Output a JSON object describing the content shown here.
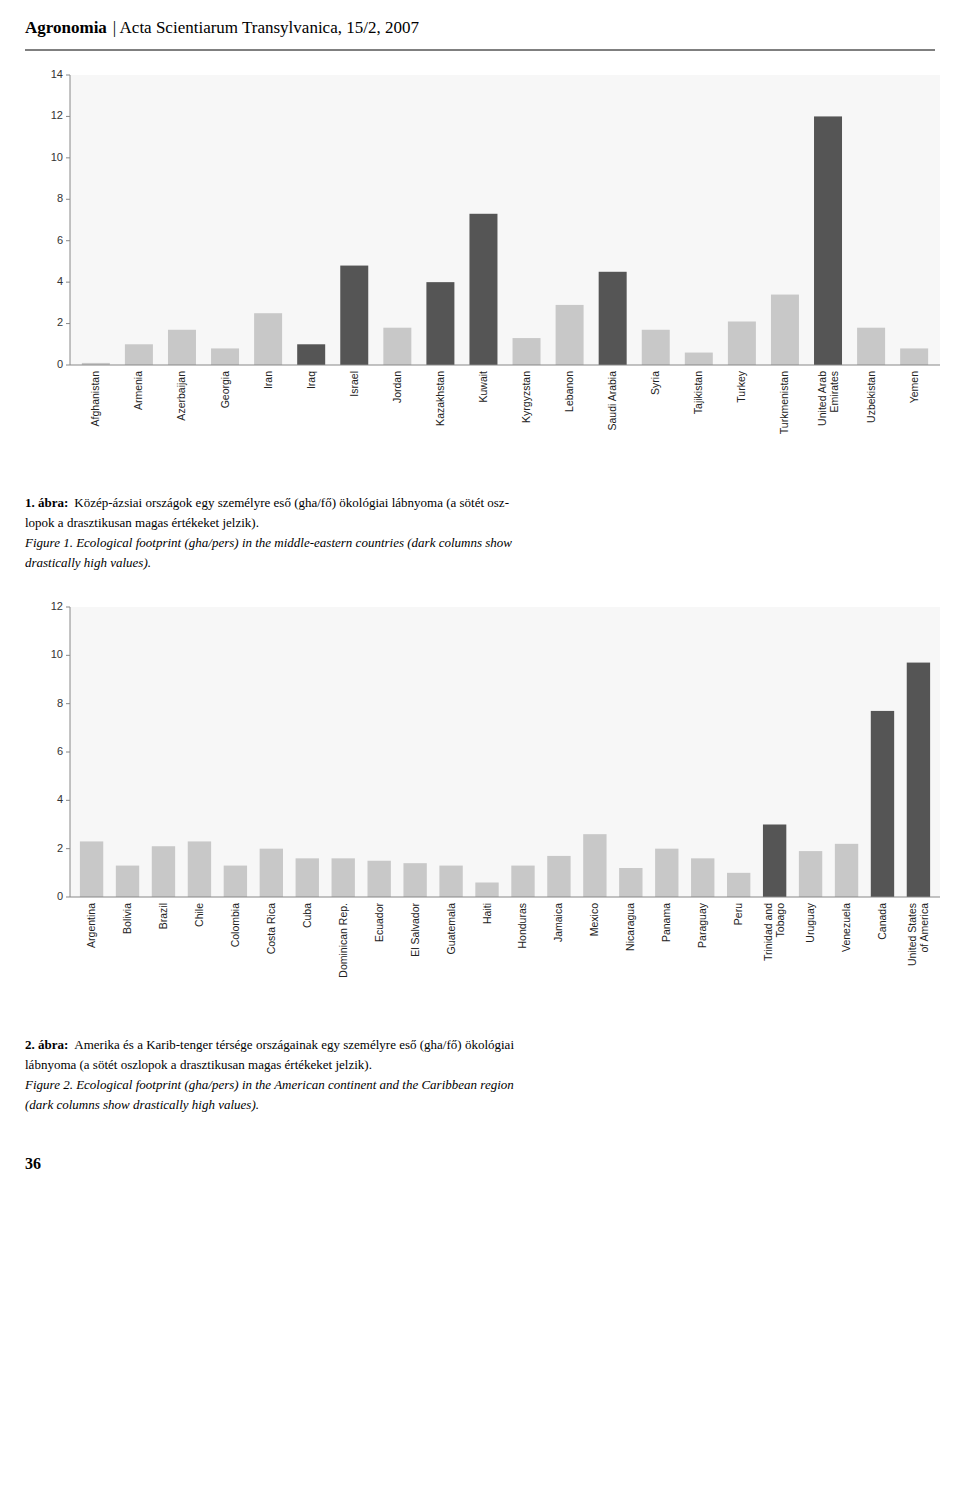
{
  "page": {
    "header_journal": "Agronomia",
    "header_source": "| Acta Scientiarum Transylvanica, 15/2, 2007",
    "page_number": "36"
  },
  "chart_data": [
    {
      "type": "bar",
      "categories": [
        "Afghanistan",
        "Armenia",
        "Azerbaijan",
        "Georgia",
        "Iran",
        "Iraq",
        "Israel",
        "Jordan",
        "Kazakhstan",
        "Kuwait",
        "Kyrgyzstan",
        "Lebanon",
        "Saudi Arabia",
        "Syria",
        "Tajikistan",
        "Turkey",
        "Turkmenistan",
        "United Arab\nEmirates",
        "Uzbekistan",
        "Yemen"
      ],
      "values": [
        0.1,
        1.0,
        1.7,
        0.8,
        2.5,
        1.0,
        4.8,
        1.8,
        4.0,
        7.3,
        1.3,
        2.9,
        4.5,
        1.7,
        0.6,
        2.1,
        3.4,
        12.0,
        1.8,
        0.8
      ],
      "colors": [
        "#c8c8c8",
        "#c8c8c8",
        "#c8c8c8",
        "#c8c8c8",
        "#c8c8c8",
        "#555555",
        "#555555",
        "#c8c8c8",
        "#555555",
        "#555555",
        "#c8c8c8",
        "#c8c8c8",
        "#555555",
        "#c8c8c8",
        "#c8c8c8",
        "#c8c8c8",
        "#c8c8c8",
        "#555555",
        "#c8c8c8",
        "#c8c8c8"
      ],
      "ylim": [
        0,
        14
      ],
      "yticks": [
        0,
        2,
        4,
        6,
        8,
        10,
        12,
        14
      ],
      "grid": false,
      "caption_label": "1. ábra:",
      "caption": [
        "Közép-ázsiai országok egy személyre eső (gha/fő) ökológiai lábnyoma (a sötét osz-",
        "lopok a drasztikusan magas értékeket jelzik)."
      ],
      "caption_en": [
        "Figure 1. Ecological footprint (gha/pers) in the middle-eastern countries (dark columns show",
        "drastically high values)."
      ]
    },
    {
      "type": "bar",
      "categories": [
        "Argentina",
        "Bolivia",
        "Brazil",
        "Chile",
        "Colombia",
        "Costa Rica",
        "Cuba",
        "Dominican Rep.",
        "Ecuador",
        "El Salvador",
        "Guatemala",
        "Haiti",
        "Honduras",
        "Jamaica",
        "Mexico",
        "Nicaragua",
        "Panama",
        "Paraguay",
        "Peru",
        "Trinidad and\nTobago",
        "Uruguay",
        "Venezuela",
        "Canada",
        "United States\nof America"
      ],
      "values": [
        2.3,
        1.3,
        2.1,
        2.3,
        1.3,
        2.0,
        1.6,
        1.6,
        1.5,
        1.4,
        1.3,
        0.6,
        1.3,
        1.7,
        2.6,
        1.2,
        2.0,
        1.6,
        1.0,
        3.0,
        1.9,
        2.2,
        7.7,
        9.7
      ],
      "colors": [
        "#c8c8c8",
        "#c8c8c8",
        "#c8c8c8",
        "#c8c8c8",
        "#c8c8c8",
        "#c8c8c8",
        "#c8c8c8",
        "#c8c8c8",
        "#c8c8c8",
        "#c8c8c8",
        "#c8c8c8",
        "#c8c8c8",
        "#c8c8c8",
        "#c8c8c8",
        "#c8c8c8",
        "#c8c8c8",
        "#c8c8c8",
        "#c8c8c8",
        "#c8c8c8",
        "#555555",
        "#c8c8c8",
        "#c8c8c8",
        "#555555",
        "#555555"
      ],
      "ylim": [
        0,
        12
      ],
      "yticks": [
        0,
        2,
        4,
        6,
        8,
        10,
        12
      ],
      "grid": false,
      "caption_label": "2. ábra:",
      "caption": [
        "Amerika és a Karib-tenger térsége országainak egy személyre eső (gha/fő) ökológiai",
        "lábnyoma (a sötét oszlopok a drasztikusan magas értékeket jelzik)."
      ],
      "caption_en": [
        "Figure 2. Ecological footprint (gha/pers) in the American continent and the Caribbean region",
        "(dark columns show drastically high values)."
      ]
    }
  ]
}
